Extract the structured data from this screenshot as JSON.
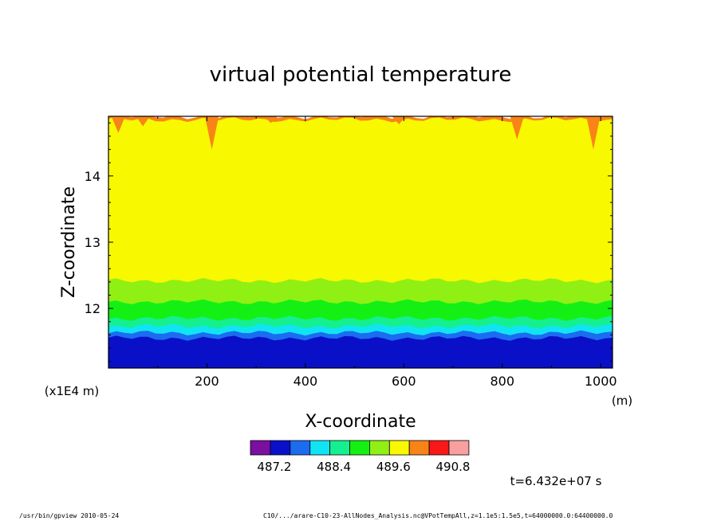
{
  "chart_data": {
    "type": "heatmap",
    "title": "virtual potential temperature",
    "xlabel": "X-coordinate",
    "ylabel": "Z-coordinate",
    "x_unit": "(m)",
    "y_unit": "(x1E4 m)",
    "xlim": [
      0,
      1024
    ],
    "ylim": [
      11.1,
      14.9
    ],
    "x_ticks": [
      200,
      400,
      600,
      800,
      1000
    ],
    "y_ticks": [
      12,
      13,
      14
    ],
    "x_tick_labels": [
      "200",
      "400",
      "600",
      "800",
      "1000"
    ],
    "y_tick_labels": [
      "12",
      "13",
      "14"
    ],
    "colorbar": {
      "colors": [
        "#7a0fa0",
        "#0a10c8",
        "#1c6cf0",
        "#10e4f4",
        "#14f090",
        "#14f014",
        "#90f014",
        "#f8f800",
        "#f88418",
        "#f81818",
        "#f8a0a0"
      ],
      "labels": [
        "487.2",
        "488.4",
        "489.6",
        "490.8"
      ]
    },
    "bands": [
      {
        "color": "#0a10c8",
        "z_top_avg": 11.55
      },
      {
        "color": "#1c6cf0",
        "z_top_avg": 11.63
      },
      {
        "color": "#10e4f4",
        "z_top_avg": 11.73
      },
      {
        "color": "#14f090",
        "z_top_avg": 11.85
      },
      {
        "color": "#14f014",
        "z_top_avg": 12.1
      },
      {
        "color": "#90f014",
        "z_top_avg": 12.42
      },
      {
        "color": "#f8f800",
        "z_top_avg": 14.85
      },
      {
        "color": "#f88418",
        "z_top_avg": 14.9
      }
    ],
    "time_label": "t=6.432e+07 s"
  },
  "footer": {
    "left": "/usr/bin/gpview   2010-05-24",
    "right": "C10/.../arare-C10-23-AllNodes_Analysis.nc@VPotTempAll,z=1.1e5:1.5e5,t=64000000.0:64400000.0"
  }
}
